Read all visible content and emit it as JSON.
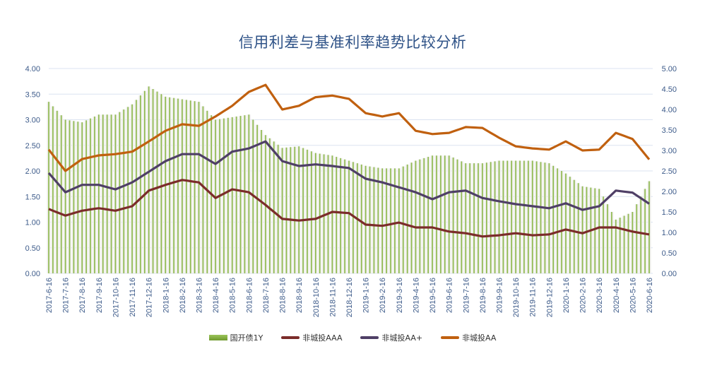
{
  "chart_data": {
    "type": "bar+line",
    "title": "信用利差与基准利率趋势比较分析",
    "x": [
      "2017-6-16",
      "2017-7-16",
      "2017-8-16",
      "2017-9-16",
      "2017-10-16",
      "2017-11-16",
      "2017-12-16",
      "2018-1-16",
      "2018-2-16",
      "2018-3-16",
      "2018-4-16",
      "2018-5-16",
      "2018-6-16",
      "2018-7-16",
      "2018-8-16",
      "2018-9-16",
      "2018-10-16",
      "2018-11-16",
      "2018-12-16",
      "2019-1-16",
      "2019-2-16",
      "2019-3-16",
      "2019-4-16",
      "2019-5-16",
      "2019-6-16",
      "2019-7-16",
      "2019-8-16",
      "2019-9-16",
      "2019-10-16",
      "2019-11-16",
      "2019-12-16",
      "2020-1-16",
      "2020-2-16",
      "2020-3-16",
      "2020-4-16",
      "2020-5-16",
      "2020-6-16"
    ],
    "y_left": {
      "ticks": [
        "0.00",
        "0.50",
        "1.00",
        "1.50",
        "2.00",
        "2.50",
        "3.00",
        "3.50",
        "4.00"
      ],
      "range": [
        0,
        4
      ]
    },
    "y_right": {
      "ticks": [
        "0.00",
        "0.50",
        "1.00",
        "1.50",
        "2.00",
        "2.50",
        "3.00",
        "3.50",
        "4.00",
        "4.50",
        "5.00"
      ],
      "range": [
        0,
        5
      ]
    },
    "grid": true,
    "legend_position": "bottom",
    "series": [
      {
        "name": "国开债1Y",
        "type": "bar",
        "axis": "left",
        "color": "#8cb84a",
        "values": [
          3.35,
          3.0,
          2.95,
          3.1,
          3.1,
          3.3,
          3.65,
          3.45,
          3.4,
          3.35,
          3.0,
          3.05,
          3.1,
          2.7,
          2.45,
          2.48,
          2.35,
          2.3,
          2.2,
          2.1,
          2.05,
          2.05,
          2.2,
          2.3,
          2.3,
          2.15,
          2.15,
          2.2,
          2.2,
          2.2,
          2.15,
          1.95,
          1.7,
          1.65,
          1.05,
          1.2,
          1.8
        ]
      },
      {
        "name": "非城投AAA",
        "type": "line",
        "axis": "right",
        "color": "#7b2c2a",
        "values": [
          1.57,
          1.41,
          1.53,
          1.59,
          1.53,
          1.64,
          2.02,
          2.16,
          2.28,
          2.22,
          1.84,
          2.05,
          1.98,
          1.67,
          1.33,
          1.29,
          1.33,
          1.5,
          1.47,
          1.19,
          1.16,
          1.24,
          1.12,
          1.12,
          1.02,
          0.98,
          0.9,
          0.93,
          0.98,
          0.93,
          0.95,
          1.07,
          0.98,
          1.12,
          1.12,
          1.02,
          0.95
        ]
      },
      {
        "name": "非城投AA+",
        "type": "line",
        "axis": "right",
        "color": "#4f3f66",
        "values": [
          2.45,
          1.98,
          2.16,
          2.16,
          2.05,
          2.22,
          2.48,
          2.74,
          2.91,
          2.91,
          2.67,
          2.97,
          3.05,
          3.22,
          2.74,
          2.62,
          2.66,
          2.62,
          2.57,
          2.31,
          2.22,
          2.1,
          1.98,
          1.81,
          1.98,
          2.02,
          1.84,
          1.76,
          1.69,
          1.64,
          1.59,
          1.71,
          1.55,
          1.64,
          2.02,
          1.97,
          1.7
        ]
      },
      {
        "name": "非城投AA",
        "type": "line",
        "axis": "right",
        "color": "#c0600f",
        "values": [
          3.02,
          2.5,
          2.79,
          2.88,
          2.91,
          2.97,
          3.22,
          3.48,
          3.64,
          3.6,
          3.83,
          4.09,
          4.43,
          4.6,
          4.0,
          4.09,
          4.3,
          4.34,
          4.26,
          3.91,
          3.83,
          3.91,
          3.48,
          3.4,
          3.43,
          3.57,
          3.55,
          3.31,
          3.1,
          3.05,
          3.02,
          3.22,
          3.0,
          3.02,
          3.43,
          3.28,
          2.78
        ]
      }
    ]
  }
}
